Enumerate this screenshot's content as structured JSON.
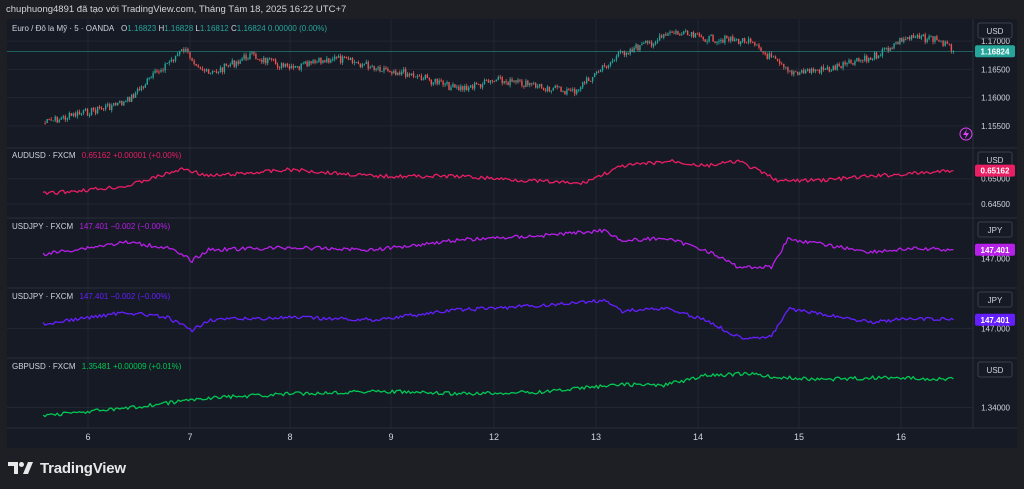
{
  "header": {
    "text": "chuphuong4891 đã tạo với TradingView.com, Tháng Tám 18, 2025 16:22 UTC+7"
  },
  "brand": {
    "name": "TradingView"
  },
  "colors": {
    "background": "#1e1f24",
    "plot_background": "#161a25",
    "grid": "#232633",
    "separator": "#2a2e39",
    "text": "#d1d4dc",
    "candle_up": "#26a69a",
    "candle_down": "#ef5350"
  },
  "chart_data": [
    {
      "type": "candlestick",
      "label": "Euro / Đô la Mỹ · 5 · OANDA",
      "ohlc_text": {
        "o_label": "O",
        "o": "1.16823",
        "h_label": "H",
        "h": "1.16828",
        "l_label": "L",
        "l": "1.16812",
        "c_label": "C",
        "c": "1.16824",
        "change": "0.00000 (0.00%)"
      },
      "color": "#26a69a",
      "currency": "USD",
      "last_value": "1.16824",
      "ylim": [
        1.1525,
        1.1725
      ],
      "yticks": [
        "1.17000",
        "1.16500",
        "1.16000",
        "1.15500"
      ],
      "series": [
        {
          "x": "6",
          "y": 1.1555
        },
        {
          "x": "7",
          "y": 1.1592
        },
        {
          "x": "7.4",
          "y": 1.1648
        },
        {
          "x": "7.7",
          "y": 1.1685
        },
        {
          "x": "8",
          "y": 1.164
        },
        {
          "x": "8.5",
          "y": 1.1675
        },
        {
          "x": "9",
          "y": 1.165
        },
        {
          "x": "9.5",
          "y": 1.167
        },
        {
          "x": "10",
          "y": 1.1655
        },
        {
          "x": "10.5",
          "y": 1.164
        },
        {
          "x": "11",
          "y": 1.1615
        },
        {
          "x": "11.5",
          "y": 1.163
        },
        {
          "x": "12",
          "y": 1.162
        },
        {
          "x": "12.4",
          "y": 1.161
        },
        {
          "x": "13",
          "y": 1.168
        },
        {
          "x": "13.4",
          "y": 1.17
        },
        {
          "x": "13.6",
          "y": 1.1715
        },
        {
          "x": "14",
          "y": 1.1705
        },
        {
          "x": "14.5",
          "y": 1.17
        },
        {
          "x": "14.8",
          "y": 1.167
        },
        {
          "x": "15",
          "y": 1.1645
        },
        {
          "x": "15.5",
          "y": 1.165
        },
        {
          "x": "16",
          "y": 1.167
        },
        {
          "x": "16.4",
          "y": 1.1705
        },
        {
          "x": "16.8",
          "y": 1.1705
        },
        {
          "x": "17",
          "y": 1.1682
        }
      ]
    },
    {
      "type": "line",
      "label": "AUDUSD · FXCM",
      "value_text": "0.65162",
      "change_text": "+0.00001 (+0.00%)",
      "color": "#e91e63",
      "currency": "USD",
      "last_value": "0.65162",
      "ylim": [
        0.6438,
        0.6545
      ],
      "yticks": [
        "0.65000",
        "0.64500"
      ],
      "series": [
        {
          "x": "6",
          "y": 0.647
        },
        {
          "x": "7",
          "y": 0.6485
        },
        {
          "x": "7.7",
          "y": 0.652
        },
        {
          "x": "8",
          "y": 0.6505
        },
        {
          "x": "9",
          "y": 0.6518
        },
        {
          "x": "10",
          "y": 0.6505
        },
        {
          "x": "11",
          "y": 0.6505
        },
        {
          "x": "12",
          "y": 0.6495
        },
        {
          "x": "12.5",
          "y": 0.649
        },
        {
          "x": "13",
          "y": 0.6525
        },
        {
          "x": "13.6",
          "y": 0.6535
        },
        {
          "x": "14",
          "y": 0.6525
        },
        {
          "x": "14.4",
          "y": 0.6535
        },
        {
          "x": "14.9",
          "y": 0.6495
        },
        {
          "x": "15.5",
          "y": 0.6498
        },
        {
          "x": "16",
          "y": 0.6505
        },
        {
          "x": "16.5",
          "y": 0.651
        },
        {
          "x": "17",
          "y": 0.6516
        }
      ]
    },
    {
      "type": "line",
      "label": "USDJPY · FXCM",
      "value_text": "147.401",
      "change_text": "−0.002 (−0.00%)",
      "color": "#b620e8",
      "currency": "JPY",
      "last_value": "147.401",
      "ylim": [
        146.0,
        148.5
      ],
      "yticks": [
        "147.000"
      ],
      "series": [
        {
          "x": "6",
          "y": 147.2
        },
        {
          "x": "7",
          "y": 147.75
        },
        {
          "x": "7.5",
          "y": 147.5
        },
        {
          "x": "7.8",
          "y": 146.9
        },
        {
          "x": "8",
          "y": 147.4
        },
        {
          "x": "9",
          "y": 147.5
        },
        {
          "x": "10",
          "y": 147.4
        },
        {
          "x": "11",
          "y": 147.85
        },
        {
          "x": "12",
          "y": 148.05
        },
        {
          "x": "12.8",
          "y": 148.3
        },
        {
          "x": "13",
          "y": 147.8
        },
        {
          "x": "13.5",
          "y": 147.95
        },
        {
          "x": "14",
          "y": 147.4
        },
        {
          "x": "14.4",
          "y": 146.6
        },
        {
          "x": "14.8",
          "y": 146.6
        },
        {
          "x": "15",
          "y": 147.9
        },
        {
          "x": "15.5",
          "y": 147.6
        },
        {
          "x": "16",
          "y": 147.3
        },
        {
          "x": "16.5",
          "y": 147.45
        },
        {
          "x": "17",
          "y": 147.4
        }
      ]
    },
    {
      "type": "line",
      "label": "USDJPY · FXCM",
      "value_text": "147.401",
      "change_text": "−0.002 (−0.00%)",
      "color": "#651fff",
      "currency": "JPY",
      "last_value": "147.401",
      "ylim": [
        146.0,
        148.5
      ],
      "yticks": [
        "147.000"
      ],
      "series": [
        {
          "x": "6",
          "y": 147.2
        },
        {
          "x": "7",
          "y": 147.75
        },
        {
          "x": "7.5",
          "y": 147.5
        },
        {
          "x": "7.8",
          "y": 146.9
        },
        {
          "x": "8",
          "y": 147.4
        },
        {
          "x": "9",
          "y": 147.5
        },
        {
          "x": "10",
          "y": 147.4
        },
        {
          "x": "11",
          "y": 147.85
        },
        {
          "x": "12",
          "y": 148.05
        },
        {
          "x": "12.8",
          "y": 148.3
        },
        {
          "x": "13",
          "y": 147.8
        },
        {
          "x": "13.5",
          "y": 147.95
        },
        {
          "x": "14",
          "y": 147.4
        },
        {
          "x": "14.4",
          "y": 146.6
        },
        {
          "x": "14.8",
          "y": 146.6
        },
        {
          "x": "15",
          "y": 147.9
        },
        {
          "x": "15.5",
          "y": 147.6
        },
        {
          "x": "16",
          "y": 147.3
        },
        {
          "x": "16.5",
          "y": 147.45
        },
        {
          "x": "17",
          "y": 147.4
        }
      ]
    },
    {
      "type": "line",
      "label": "GBPUSD · FXCM",
      "value_text": "1.35481",
      "change_text": "+0.00009 (+0.01%)",
      "color": "#00c853",
      "currency": "USD",
      "last_value": "",
      "ylim": [
        1.3335,
        1.3615
      ],
      "yticks": [
        "1.34000"
      ],
      "series": [
        {
          "x": "6",
          "y": 1.336
        },
        {
          "x": "7",
          "y": 1.3395
        },
        {
          "x": "8",
          "y": 1.345
        },
        {
          "x": "9",
          "y": 1.347
        },
        {
          "x": "10",
          "y": 1.3485
        },
        {
          "x": "11",
          "y": 1.347
        },
        {
          "x": "12",
          "y": 1.348
        },
        {
          "x": "13",
          "y": 1.352
        },
        {
          "x": "13.5",
          "y": 1.3515
        },
        {
          "x": "14",
          "y": 1.3565
        },
        {
          "x": "14.5",
          "y": 1.3575
        },
        {
          "x": "14.9",
          "y": 1.3555
        },
        {
          "x": "15.5",
          "y": 1.3545
        },
        {
          "x": "16",
          "y": 1.3555
        },
        {
          "x": "17",
          "y": 1.3548
        }
      ]
    }
  ],
  "xaxis": {
    "ticks": [
      "6",
      "7",
      "8",
      "9",
      "12",
      "13",
      "14",
      "15",
      "16"
    ]
  }
}
